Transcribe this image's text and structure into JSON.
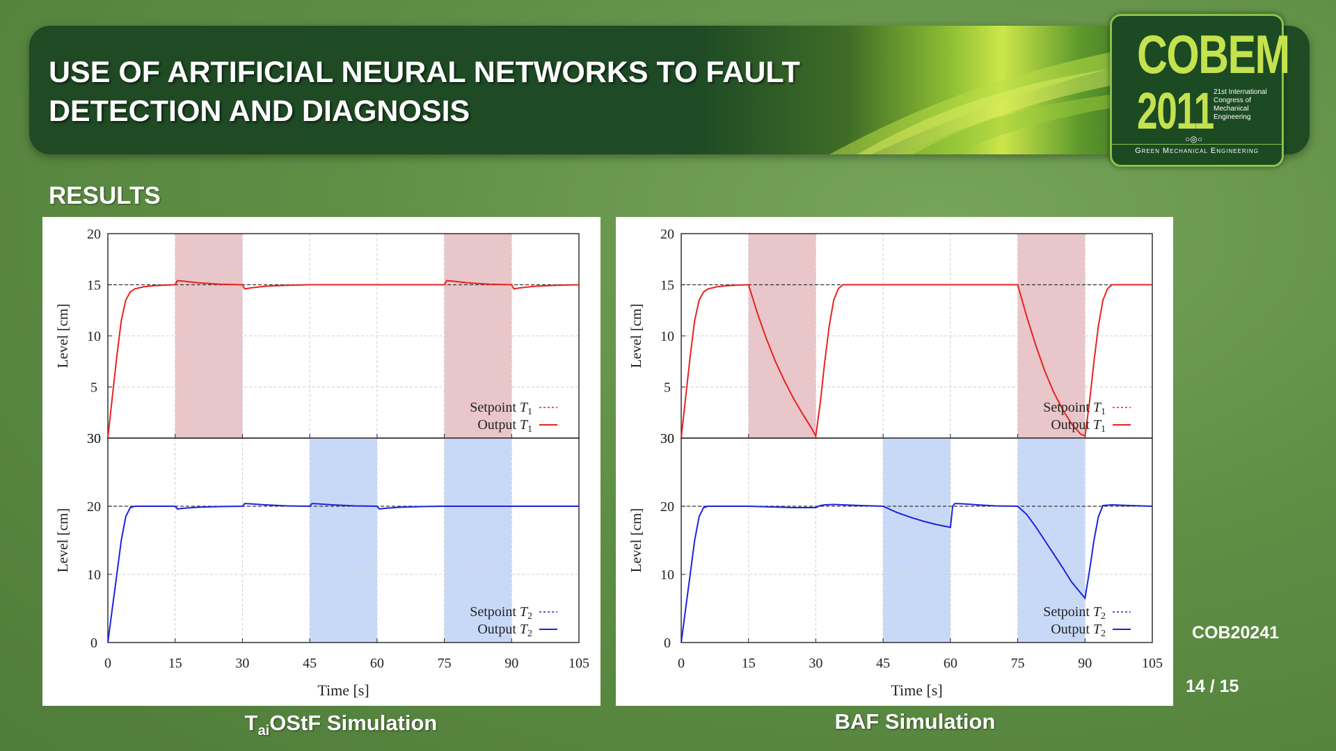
{
  "slide": {
    "title": "USE OF ARTIFICIAL NEURAL NETWORKS TO FAULT DETECTION AND DIAGNOSIS",
    "section": "RESULTS",
    "code": "COB20241",
    "page": "14 / 15",
    "caption_left_prefix": "T",
    "caption_left_sub": "ai",
    "caption_left_suffix": "OStF Simulation",
    "caption_right": "BAF Simulation"
  },
  "logo": {
    "name": "COBEM",
    "year": "2011",
    "congress": "21st International Congress of Mechanical Engineering",
    "tagline": "Green Mechanical Engineering",
    "icon": "gear-rings-icon"
  },
  "colors": {
    "red": "#e82020",
    "blue": "#1a23e0",
    "red_band": "#e9c6c9",
    "blue_band": "#c8d9f8"
  },
  "chart_data": [
    {
      "id": "taiostf",
      "type": "line",
      "xlabel": "Time [s]",
      "xticks": [
        0,
        15,
        30,
        45,
        60,
        75,
        90,
        105
      ],
      "xlim": [
        0,
        105
      ],
      "subplots": [
        {
          "ylabel": "Level [cm]",
          "ylim": [
            0,
            20
          ],
          "yticks": [
            5,
            10,
            15,
            20
          ],
          "ytick_labels": [
            "5",
            "10",
            "15",
            "20"
          ],
          "bottom_tick_label": "30",
          "setpoint": 15,
          "bands": [
            [
              15,
              30
            ],
            [
              75,
              90
            ]
          ],
          "band_color": "red_band",
          "legend": [
            "Setpoint T1",
            "Output T1"
          ],
          "line_color": "red",
          "series": [
            {
              "name": "Output T1",
              "x": [
                0,
                1,
                2,
                3,
                4,
                5,
                6,
                8,
                10,
                12,
                15,
                15.5,
                17,
                20,
                25,
                30,
                30.5,
                32,
                35,
                40,
                45,
                50,
                60,
                75,
                75.5,
                77,
                80,
                85,
                90,
                90.5,
                92,
                95,
                100,
                105
              ],
              "y": [
                0,
                4,
                8,
                11.5,
                13.5,
                14.3,
                14.6,
                14.8,
                14.9,
                14.95,
                15.0,
                15.4,
                15.35,
                15.2,
                15.05,
                15.0,
                14.6,
                14.7,
                14.85,
                14.95,
                15.0,
                15.0,
                15.0,
                15.0,
                15.4,
                15.35,
                15.2,
                15.05,
                15.0,
                14.6,
                14.7,
                14.85,
                14.95,
                15.0
              ]
            }
          ]
        },
        {
          "ylabel": "Level [cm]",
          "ylim": [
            0,
            30
          ],
          "yticks": [
            0,
            10,
            20,
            30
          ],
          "ytick_labels": [
            "0",
            "10",
            "20",
            "30"
          ],
          "setpoint": 20,
          "bands": [
            [
              45,
              60
            ],
            [
              75,
              90
            ]
          ],
          "band_color": "blue_band",
          "legend": [
            "Setpoint T2",
            "Output T2"
          ],
          "line_color": "blue",
          "series": [
            {
              "name": "Output T2",
              "x": [
                0,
                1,
                2,
                3,
                4,
                5,
                6,
                8,
                10,
                15,
                15.5,
                17,
                20,
                25,
                30,
                30.5,
                32,
                35,
                40,
                45,
                45.5,
                47,
                50,
                55,
                60,
                60.5,
                62,
                65,
                70,
                75,
                80,
                90,
                95,
                105
              ],
              "y": [
                0,
                5,
                10,
                15,
                18.5,
                19.8,
                20,
                20,
                20,
                20,
                19.6,
                19.7,
                19.85,
                19.95,
                20,
                20.4,
                20.35,
                20.2,
                20.05,
                20,
                20.4,
                20.35,
                20.2,
                20.05,
                20,
                19.6,
                19.7,
                19.85,
                19.95,
                20,
                20,
                20,
                20,
                20
              ]
            }
          ]
        }
      ]
    },
    {
      "id": "baf",
      "type": "line",
      "xlabel": "Time [s]",
      "xticks": [
        0,
        15,
        30,
        45,
        60,
        75,
        90,
        105
      ],
      "xlim": [
        0,
        105
      ],
      "subplots": [
        {
          "ylabel": "Level [cm]",
          "ylim": [
            0,
            20
          ],
          "yticks": [
            5,
            10,
            15,
            20
          ],
          "ytick_labels": [
            "5",
            "10",
            "15",
            "20"
          ],
          "bottom_tick_label": "30",
          "setpoint": 15,
          "bands": [
            [
              15,
              30
            ],
            [
              75,
              90
            ]
          ],
          "band_color": "red_band",
          "legend": [
            "Setpoint T1",
            "Output T1"
          ],
          "line_color": "red",
          "series": [
            {
              "name": "Output T1",
              "x": [
                0,
                1,
                2,
                3,
                4,
                5,
                6,
                8,
                10,
                13,
                15,
                17,
                19,
                21,
                23,
                25,
                27,
                29,
                30,
                31,
                32,
                33,
                34,
                35,
                36,
                38,
                40,
                45,
                60,
                75,
                77,
                79,
                81,
                83,
                85,
                87,
                89,
                90,
                91,
                92,
                93,
                94,
                95,
                96,
                98,
                100,
                105
              ],
              "y": [
                0,
                4,
                8,
                11.5,
                13.5,
                14.3,
                14.6,
                14.8,
                14.9,
                14.97,
                15.0,
                12.2,
                9.7,
                7.5,
                5.6,
                3.9,
                2.4,
                1.0,
                0.2,
                3.5,
                7.5,
                11.0,
                13.5,
                14.6,
                15.0,
                15.0,
                15.0,
                15.0,
                15.0,
                15.0,
                11.9,
                9.1,
                6.6,
                4.5,
                2.8,
                1.4,
                0.4,
                0.2,
                3.5,
                7.5,
                11.0,
                13.5,
                14.6,
                15.0,
                15.0,
                15.0,
                15.0
              ]
            }
          ]
        },
        {
          "ylabel": "Level [cm]",
          "ylim": [
            0,
            30
          ],
          "yticks": [
            0,
            10,
            20,
            30
          ],
          "ytick_labels": [
            "0",
            "10",
            "20",
            "30"
          ],
          "setpoint": 20,
          "bands": [
            [
              45,
              60
            ],
            [
              75,
              90
            ]
          ],
          "band_color": "blue_band",
          "legend": [
            "Setpoint T2",
            "Output T2"
          ],
          "line_color": "blue",
          "series": [
            {
              "name": "Output T2",
              "x": [
                0,
                1,
                2,
                3,
                4,
                5,
                6,
                8,
                10,
                15,
                20,
                25,
                28,
                30,
                31,
                32,
                34,
                36,
                40,
                45,
                48,
                51,
                54,
                57,
                60,
                60.5,
                61,
                63,
                66,
                70,
                75,
                77,
                79,
                81,
                83,
                85,
                87,
                89,
                90,
                91,
                92,
                93,
                94,
                96,
                100,
                105
              ],
              "y": [
                0,
                5,
                10,
                15,
                18.5,
                19.8,
                20,
                20,
                20,
                20,
                19.9,
                19.8,
                19.8,
                19.8,
                20.1,
                20.2,
                20.25,
                20.2,
                20.1,
                20.0,
                19.1,
                18.4,
                17.8,
                17.3,
                16.9,
                20.0,
                20.4,
                20.35,
                20.2,
                20.05,
                20.0,
                18.8,
                17.0,
                15.0,
                13.0,
                11.0,
                8.9,
                7.3,
                6.5,
                10.5,
                15.0,
                18.5,
                20.1,
                20.2,
                20.1,
                20.0
              ]
            }
          ]
        }
      ]
    }
  ]
}
